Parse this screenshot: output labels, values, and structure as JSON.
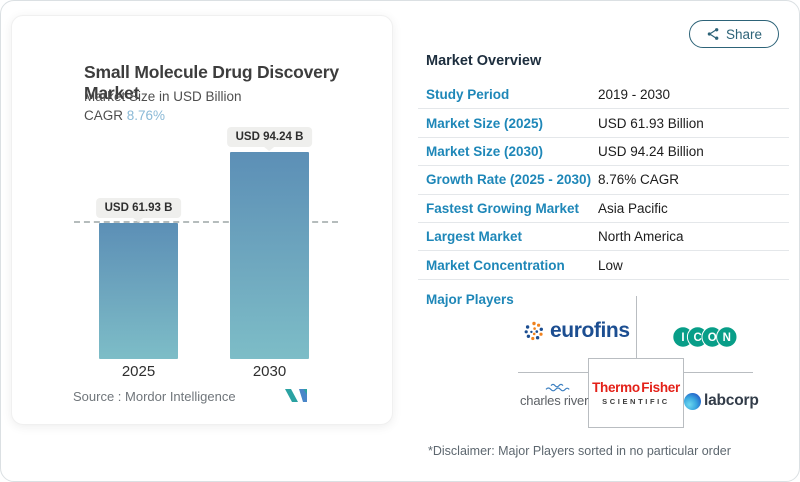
{
  "share_button": {
    "label": "Share"
  },
  "chart_panel": {
    "title": "Small Molecule Drug Discovery Market",
    "subtitle": "Market Size in USD Billion",
    "cagr_label": "CAGR ",
    "cagr_value": "8.76%",
    "source_text": "Source :  Mordor Intelligence"
  },
  "chart_data": {
    "type": "bar",
    "title": "Small Molecule Drug Discovery Market",
    "ylabel": "Market Size in USD Billion",
    "categories": [
      "2025",
      "2030"
    ],
    "values": [
      61.93,
      94.24
    ],
    "value_labels": [
      "USD 61.93 B",
      "USD 94.24 B"
    ],
    "ylim": [
      0,
      105
    ],
    "dashed_reference_value": 61.93,
    "grid": "off",
    "legend": "none",
    "bar_gradient": [
      "#5c8fb6",
      "#7dbdc7"
    ]
  },
  "overview": {
    "title": "Market Overview",
    "rows": [
      {
        "label": "Study Period",
        "value": "2019 - 2030"
      },
      {
        "label": "Market Size (2025)",
        "value": "USD 61.93 Billion"
      },
      {
        "label": "Market Size (2030)",
        "value": "USD 94.24 Billion"
      },
      {
        "label": "Growth Rate (2025 - 2030)",
        "value": "8.76% CAGR"
      },
      {
        "label": "Fastest Growing Market",
        "value": "Asia Pacific"
      },
      {
        "label": "Largest Market",
        "value": "North America"
      },
      {
        "label": "Market Concentration",
        "value": "Low"
      }
    ],
    "major_players_label": "Major Players",
    "disclaimer": "*Disclaimer: Major Players sorted in no particular order"
  },
  "players": {
    "eurofins": "eurofins",
    "icon_letters": [
      "I",
      "C",
      "O",
      "N"
    ],
    "charles_river": "charles river",
    "thermo_line1": "Thermo Fisher",
    "thermo_line2": "SCIENTIFIC",
    "labcorp": "labcorp"
  },
  "icons": {
    "share": "share-nodes-icon",
    "mordor_logo": "mordor-intelligence-logo",
    "eurofins_dots": "eurofins-dots-icon",
    "icon_circles": "icon-plc-circles-icon",
    "charles_river_waves": "charles-river-waves-icon",
    "labcorp_ball": "labcorp-globe-icon"
  },
  "colors": {
    "accent_blue": "#1e87b8",
    "cagr_value": "#8ab9d6",
    "bar_top": "#5c8fb6",
    "bar_bottom": "#7dbdc7",
    "share": "#2d6378",
    "icon_teal": "#089e88",
    "eurofins_navy": "#1c4e91",
    "thermo_red": "#e32119",
    "connector_gray": "#b9bdc1"
  }
}
